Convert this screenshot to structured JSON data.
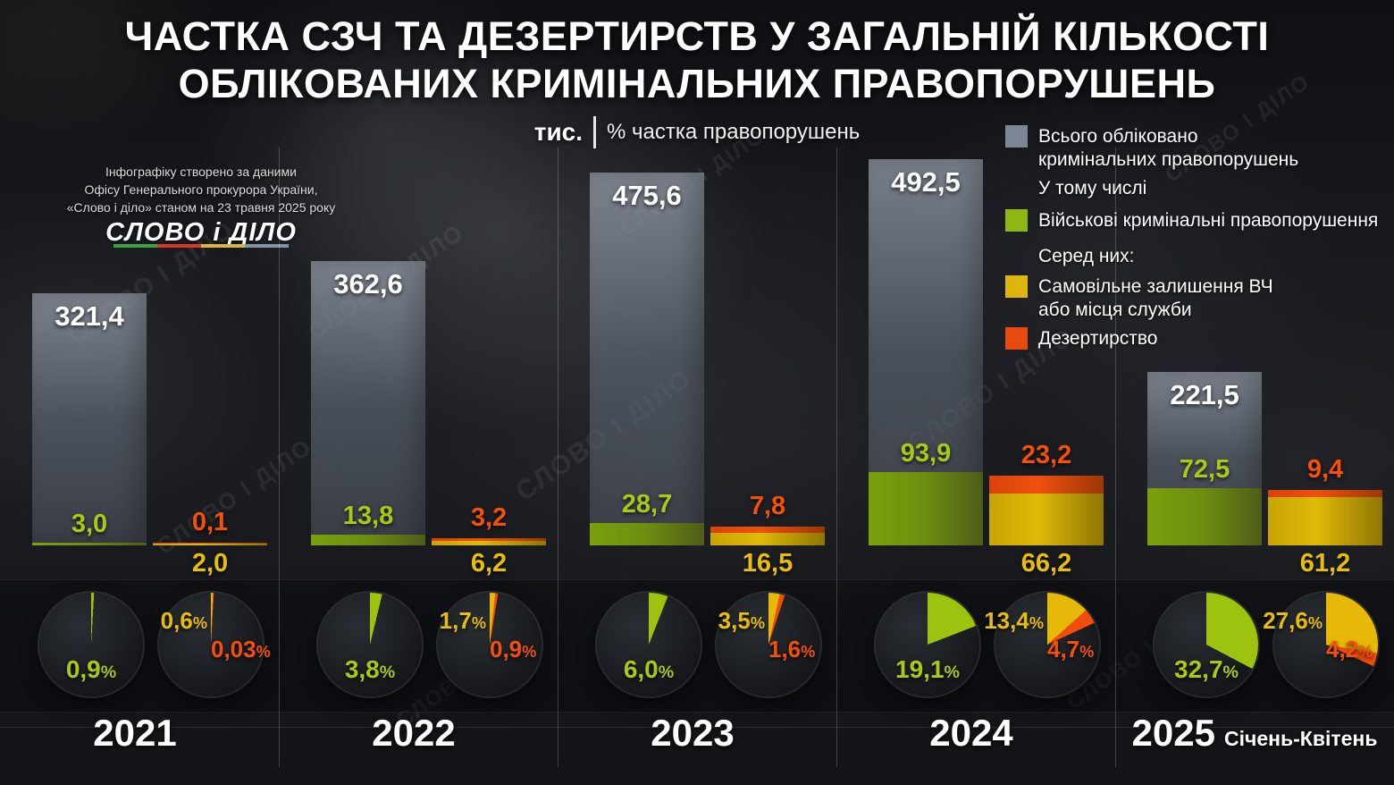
{
  "title": {
    "line1": "ЧАСТКА СЗЧ ТА ДЕЗЕРТИРСТВ У ЗАГАЛЬНІЙ КІЛЬКОСТІ",
    "line2": "ОБЛІКОВАНИХ КРИМІНАЛЬНИХ ПРАВОПОРУШЕНЬ"
  },
  "axis_note": {
    "unit_label": "тис.",
    "percent_label": "% частка правопорушень"
  },
  "source": {
    "line1": "Інфографіку створено за даними",
    "line2": "Офісу Генерального прокурора України,",
    "line3": "«Слово і діло» станом на 23 травня 2025 року",
    "logo_text": "СЛОВО і ДІЛО"
  },
  "legend": {
    "total_label_line1": "Всього обліковано",
    "total_label_line2": "кримінальних правопорушень",
    "including": "У тому числі",
    "military_label": "Військові кримінальні правопорушення",
    "among": "Серед них:",
    "awol_label_line1": "Самовільне залишення ВЧ",
    "awol_label_line2": "або місця служби",
    "desertion_label": "Дезертирство"
  },
  "watermark_text": "СЛОВО І ДІЛО",
  "misc": {
    "percent_sign": "%"
  },
  "colors": {
    "total": "#78828f",
    "military": "#8db411",
    "awol": "#dcb308",
    "desertion": "#ee4d0d",
    "pie_military": "#9cc40e",
    "pie_awol": "#e6b807",
    "pie_desertion": "#f14c0b"
  },
  "chart_data": {
    "type": "bar",
    "title": "Частка СЗЧ та дезертирств у загальній кількості облікованих кримінальних правопорушень",
    "unit": "тис.",
    "categories": [
      "2021",
      "2022",
      "2023",
      "2024",
      "2025 Січень-Квітень"
    ],
    "series": [
      {
        "name": "Всього обліковано кримінальних правопорушень",
        "color": "#78828f",
        "values": [
          321.4,
          362.6,
          475.6,
          492.5,
          221.5
        ]
      },
      {
        "name": "Військові кримінальні правопорушення",
        "color": "#8db411",
        "values": [
          3.0,
          13.8,
          28.7,
          93.9,
          72.5
        ]
      },
      {
        "name": "Самовільне залишення ВЧ або місця служби",
        "color": "#dcb308",
        "values": [
          2.0,
          6.2,
          16.5,
          66.2,
          61.2
        ]
      },
      {
        "name": "Дезертирство",
        "color": "#ee4d0d",
        "values": [
          0.1,
          3.2,
          7.8,
          23.2,
          9.4
        ]
      }
    ],
    "pie_percentages": {
      "military": [
        0.9,
        3.8,
        6.0,
        19.1,
        32.7
      ],
      "awol": [
        0.6,
        1.7,
        3.5,
        13.4,
        27.6
      ],
      "desertion": [
        0.03,
        0.9,
        1.6,
        4.7,
        4.2
      ]
    },
    "ylim": [
      0,
      492.5
    ],
    "legend_position": "right",
    "grid": false
  },
  "years": [
    {
      "label": "2021",
      "suffix": "",
      "total": "321,4",
      "military": "3,0",
      "desertion": "0,1",
      "awol": "2,0",
      "pie_military": "0,9",
      "pie_awol": "0,6",
      "pie_desertion": "0,03"
    },
    {
      "label": "2022",
      "suffix": "",
      "total": "362,6",
      "military": "13,8",
      "desertion": "3,2",
      "awol": "6,2",
      "pie_military": "3,8",
      "pie_awol": "1,7",
      "pie_desertion": "0,9"
    },
    {
      "label": "2023",
      "suffix": "",
      "total": "475,6",
      "military": "28,7",
      "desertion": "7,8",
      "awol": "16,5",
      "pie_military": "6,0",
      "pie_awol": "3,5",
      "pie_desertion": "1,6"
    },
    {
      "label": "2024",
      "suffix": "",
      "total": "492,5",
      "military": "93,9",
      "desertion": "23,2",
      "awol": "66,2",
      "pie_military": "19,1",
      "pie_awol": "13,4",
      "pie_desertion": "4,7"
    },
    {
      "label": "2025",
      "suffix": "Січень-Квітень",
      "total": "221,5",
      "military": "72,5",
      "desertion": "9,4",
      "awol": "61,2",
      "pie_military": "32,7",
      "pie_awol": "27,6",
      "pie_desertion": "4,2"
    }
  ]
}
